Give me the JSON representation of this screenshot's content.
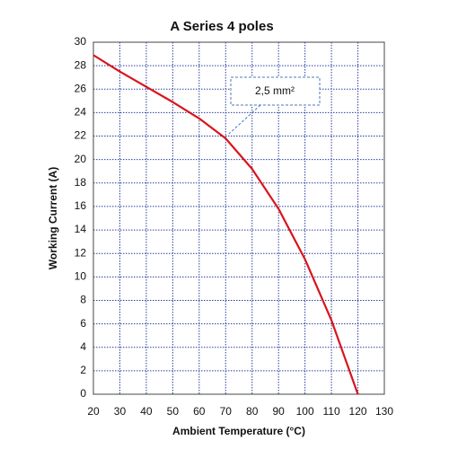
{
  "chart_data": {
    "type": "line",
    "title": "A Series 4 poles",
    "x_label": "Ambient Temperature (°C)",
    "y_label": "Working Current (A)",
    "x": [
      20,
      30,
      40,
      50,
      60,
      70,
      80,
      90,
      100,
      110,
      120
    ],
    "series": [
      {
        "name": "2,5 mm²",
        "color": "#d9141c",
        "values": [
          28.9,
          27.5,
          26.2,
          24.9,
          23.5,
          21.8,
          19.2,
          15.8,
          11.5,
          6.3,
          0
        ]
      }
    ],
    "xlim": [
      20,
      130
    ],
    "xticks": [
      20,
      30,
      40,
      50,
      60,
      70,
      80,
      90,
      100,
      110,
      120,
      130
    ],
    "ylim": [
      0,
      30
    ],
    "yticks": [
      0,
      2,
      4,
      6,
      8,
      10,
      12,
      14,
      16,
      18,
      20,
      22,
      24,
      26,
      28,
      30
    ],
    "grid": true,
    "grid_color": "#2a3f9e"
  }
}
